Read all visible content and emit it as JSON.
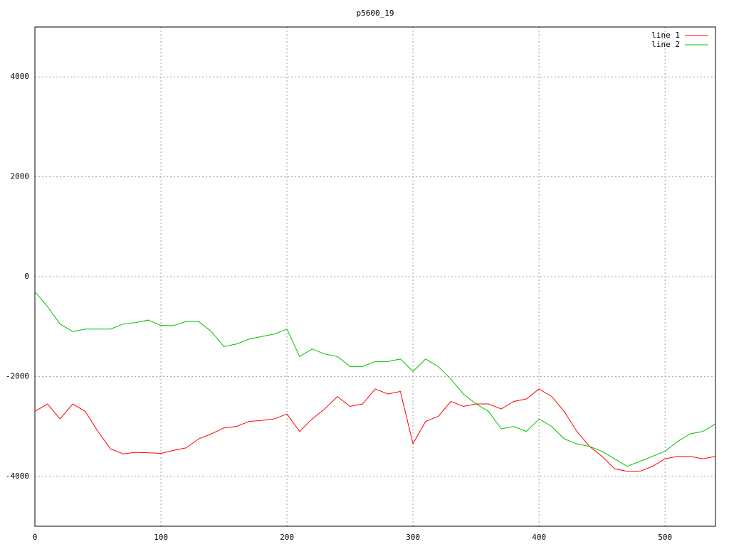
{
  "chart_data": {
    "type": "line",
    "title": "p5600_19",
    "x": [
      0,
      10,
      20,
      30,
      40,
      50,
      60,
      70,
      80,
      90,
      100,
      110,
      120,
      130,
      140,
      150,
      160,
      170,
      180,
      190,
      200,
      210,
      220,
      230,
      240,
      250,
      260,
      270,
      280,
      290,
      300,
      310,
      320,
      330,
      340,
      350,
      360,
      370,
      380,
      390,
      400,
      410,
      420,
      430,
      440,
      450,
      460,
      470,
      480,
      490,
      500,
      510,
      520,
      530,
      540
    ],
    "series": [
      {
        "name": "line 1",
        "color": "#ff0000",
        "values": [
          -2700,
          -2550,
          -2850,
          -2550,
          -2700,
          -3100,
          -3450,
          -3550,
          -3520,
          -3530,
          -3540,
          -3480,
          -3430,
          -3250,
          -3150,
          -3030,
          -3000,
          -2900,
          -2880,
          -2850,
          -2750,
          -3100,
          -2850,
          -2650,
          -2400,
          -2600,
          -2550,
          -2250,
          -2350,
          -2300,
          -3350,
          -2900,
          -2800,
          -2500,
          -2600,
          -2550,
          -2550,
          -2650,
          -2500,
          -2450,
          -2250,
          -2400,
          -2700,
          -3100,
          -3400,
          -3600,
          -3850,
          -3900,
          -3900,
          -3800,
          -3650,
          -3600,
          -3600,
          -3650,
          -3600
        ]
      },
      {
        "name": "line 2",
        "color": "#00c000",
        "values": [
          -300,
          -600,
          -950,
          -1100,
          -1050,
          -1050,
          -1050,
          -950,
          -920,
          -870,
          -980,
          -980,
          -900,
          -900,
          -1100,
          -1400,
          -1350,
          -1250,
          -1200,
          -1150,
          -1050,
          -1600,
          -1450,
          -1550,
          -1600,
          -1800,
          -1800,
          -1700,
          -1700,
          -1650,
          -1900,
          -1650,
          -1800,
          -2050,
          -2350,
          -2550,
          -2700,
          -3050,
          -3000,
          -3100,
          -2850,
          -3000,
          -3250,
          -3350,
          -3400,
          -3500,
          -3650,
          -3800,
          -3700,
          -3600,
          -3500,
          -3300,
          -3150,
          -3100,
          -2950
        ]
      }
    ],
    "xlim": [
      0,
      540
    ],
    "xticks": [
      0,
      100,
      200,
      300,
      400,
      500
    ],
    "ylim": [
      -5000,
      5000
    ],
    "yticks": [
      -4000,
      -2000,
      0,
      2000,
      4000
    ],
    "grid": true,
    "legend": "top-right"
  }
}
